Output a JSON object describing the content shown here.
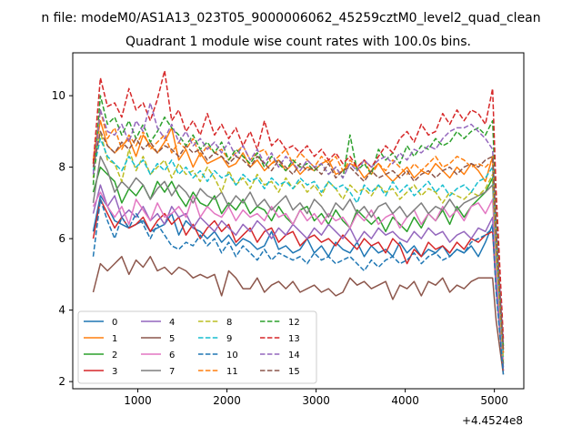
{
  "figure": {
    "suptitle": "n file: modeM0/AS1A13_023T05_9000006062_45259cztM0_level2_quad_clean"
  },
  "chart_data": {
    "type": "line",
    "title": "Quadrant 1 module wise count rates with 100.0s bins.",
    "xlabel": "",
    "ylabel": "",
    "x_offset_label": "+4.4524e8",
    "xlim": [
      270,
      5330
    ],
    "ylim": [
      1.8,
      11.2
    ],
    "xticks": [
      1000,
      2000,
      3000,
      4000,
      5000
    ],
    "yticks": [
      2,
      4,
      6,
      8,
      10
    ],
    "grid": false,
    "legend": {
      "placement": "lower-left",
      "columns": 4
    },
    "x": [
      500,
      580,
      660,
      740,
      820,
      900,
      980,
      1060,
      1140,
      1220,
      1300,
      1380,
      1460,
      1540,
      1620,
      1700,
      1780,
      1860,
      1940,
      2020,
      2100,
      2180,
      2260,
      2340,
      2420,
      2500,
      2580,
      2660,
      2740,
      2820,
      2900,
      2980,
      3060,
      3140,
      3220,
      3300,
      3380,
      3460,
      3540,
      3620,
      3700,
      3780,
      3860,
      3940,
      4020,
      4100,
      4180,
      4260,
      4340,
      4420,
      4500,
      4580,
      4660,
      4740,
      4820,
      4900,
      4980,
      5020,
      5100
    ],
    "series": [
      {
        "name": "0",
        "color": "#1f77b4",
        "style": "solid",
        "values": [
          6.2,
          7.2,
          6.9,
          6.5,
          6.4,
          6.3,
          6.4,
          6.5,
          6.2,
          6.3,
          6.4,
          6.7,
          6.1,
          6.5,
          6.3,
          6.2,
          6.0,
          6.2,
          5.9,
          6.1,
          5.8,
          6.0,
          5.9,
          5.7,
          5.8,
          6.2,
          5.7,
          5.8,
          5.6,
          5.7,
          6.0,
          5.6,
          5.8,
          5.5,
          5.9,
          5.7,
          5.6,
          5.9,
          5.5,
          5.8,
          5.6,
          5.7,
          5.5,
          5.9,
          5.6,
          5.8,
          5.5,
          5.7,
          5.6,
          5.8,
          5.5,
          5.7,
          5.6,
          5.8,
          5.5,
          5.9,
          6.4,
          4.8,
          2.4
        ]
      },
      {
        "name": "1",
        "color": "#ff7f0e",
        "style": "solid",
        "values": [
          8.1,
          9.3,
          8.6,
          8.4,
          8.6,
          8.8,
          8.3,
          8.9,
          8.6,
          8.4,
          8.7,
          9.1,
          8.2,
          8.5,
          8.0,
          8.4,
          8.1,
          8.2,
          8.3,
          8.0,
          8.1,
          8.4,
          8.0,
          8.2,
          7.9,
          8.1,
          8.2,
          7.9,
          8.1,
          7.8,
          8.0,
          7.9,
          8.1,
          8.2,
          7.8,
          7.9,
          8.1,
          8.0,
          7.7,
          7.9,
          8.1,
          7.8,
          7.6,
          7.8,
          8.0,
          7.7,
          7.9,
          7.8,
          8.1,
          7.9,
          7.7,
          8.0,
          7.8,
          8.1,
          7.9,
          7.6,
          8.3,
          6.0,
          2.9
        ]
      },
      {
        "name": "2",
        "color": "#2ca02c",
        "style": "solid",
        "values": [
          7.3,
          8.0,
          7.8,
          7.6,
          7.0,
          7.4,
          7.2,
          7.5,
          7.1,
          7.6,
          7.3,
          7.6,
          7.2,
          6.9,
          7.3,
          7.0,
          6.9,
          7.2,
          6.7,
          7.0,
          6.8,
          7.1,
          6.7,
          6.9,
          6.8,
          6.5,
          6.9,
          6.6,
          6.4,
          6.8,
          6.9,
          6.5,
          6.7,
          6.4,
          6.8,
          6.5,
          6.3,
          6.8,
          6.6,
          6.4,
          6.6,
          6.2,
          6.6,
          6.4,
          6.2,
          6.6,
          6.3,
          6.7,
          6.5,
          6.8,
          6.4,
          6.9,
          6.6,
          6.9,
          7.1,
          7.3,
          7.7,
          5.5,
          2.5
        ]
      },
      {
        "name": "3",
        "color": "#d62728",
        "style": "solid",
        "values": [
          6.0,
          7.1,
          6.7,
          6.3,
          6.6,
          6.3,
          6.4,
          6.6,
          6.2,
          6.5,
          6.7,
          6.4,
          6.6,
          6.1,
          6.4,
          6.0,
          6.3,
          6.5,
          6.2,
          6.4,
          5.9,
          6.1,
          6.3,
          5.9,
          6.2,
          6.3,
          5.9,
          6.1,
          6.2,
          5.8,
          6.0,
          6.1,
          5.9,
          6.0,
          5.8,
          6.1,
          5.9,
          5.7,
          6.0,
          5.8,
          5.9,
          5.6,
          6.0,
          5.8,
          5.3,
          5.7,
          5.5,
          5.9,
          5.7,
          5.8,
          5.6,
          5.9,
          5.7,
          6.0,
          5.9,
          6.1,
          6.2,
          4.6,
          2.3
        ]
      },
      {
        "name": "4",
        "color": "#9467bd",
        "style": "solid",
        "values": [
          6.7,
          7.5,
          6.9,
          7.2,
          6.6,
          6.8,
          6.6,
          6.9,
          6.5,
          6.7,
          6.4,
          6.9,
          6.6,
          6.7,
          6.3,
          6.6,
          6.4,
          6.2,
          6.5,
          6.3,
          6.1,
          6.4,
          6.2,
          6.5,
          6.3,
          6.0,
          6.3,
          6.1,
          6.4,
          6.2,
          6.0,
          6.3,
          6.1,
          6.4,
          6.2,
          6.0,
          6.3,
          5.9,
          6.2,
          6.0,
          6.3,
          6.1,
          6.2,
          6.0,
          5.9,
          6.2,
          6.0,
          6.3,
          6.1,
          6.2,
          5.9,
          6.1,
          6.2,
          6.0,
          6.3,
          6.2,
          6.6,
          4.7,
          2.3
        ]
      },
      {
        "name": "5",
        "color": "#8c564b",
        "style": "solid",
        "values": [
          4.5,
          5.3,
          5.1,
          5.3,
          5.5,
          5.0,
          5.4,
          5.2,
          5.5,
          5.1,
          5.2,
          5.0,
          5.2,
          5.1,
          4.9,
          5.0,
          4.9,
          5.0,
          4.4,
          5.1,
          4.9,
          4.6,
          4.6,
          4.9,
          4.5,
          4.7,
          4.8,
          4.6,
          4.8,
          4.5,
          4.6,
          4.7,
          4.5,
          4.6,
          4.4,
          4.5,
          4.9,
          4.7,
          4.8,
          4.6,
          4.7,
          4.8,
          4.3,
          4.7,
          4.6,
          4.8,
          4.4,
          4.8,
          4.7,
          4.9,
          4.5,
          4.7,
          4.6,
          4.8,
          4.9,
          4.9,
          4.9,
          3.7,
          2.2
        ]
      },
      {
        "name": "6",
        "color": "#e377c2",
        "style": "solid",
        "values": [
          6.9,
          7.3,
          6.9,
          6.6,
          6.9,
          6.4,
          7.1,
          6.8,
          6.5,
          7.0,
          6.6,
          6.7,
          6.9,
          6.6,
          7.2,
          6.6,
          6.9,
          6.7,
          6.6,
          6.9,
          6.5,
          6.8,
          6.6,
          6.7,
          6.5,
          6.9,
          6.6,
          6.7,
          6.4,
          6.8,
          6.5,
          6.7,
          6.4,
          6.7,
          6.5,
          6.6,
          6.3,
          6.7,
          6.5,
          6.8,
          6.4,
          6.6,
          6.7,
          6.3,
          6.6,
          6.8,
          6.4,
          6.7,
          6.5,
          6.9,
          6.6,
          6.8,
          6.5,
          6.9,
          7.0,
          6.7,
          7.1,
          5.2,
          2.6
        ]
      },
      {
        "name": "7",
        "color": "#7f7f7f",
        "style": "solid",
        "values": [
          7.0,
          8.3,
          7.9,
          7.3,
          7.6,
          7.4,
          7.7,
          7.5,
          7.1,
          7.4,
          7.6,
          7.2,
          7.5,
          7.3,
          7.0,
          7.4,
          7.2,
          7.1,
          7.3,
          6.9,
          7.2,
          7.0,
          7.3,
          6.9,
          7.1,
          6.8,
          7.0,
          7.2,
          6.8,
          7.0,
          6.7,
          7.1,
          6.9,
          6.6,
          7.0,
          6.8,
          7.1,
          6.7,
          6.9,
          6.6,
          6.9,
          7.0,
          6.7,
          6.9,
          6.6,
          6.8,
          7.0,
          6.7,
          6.9,
          6.8,
          7.1,
          6.8,
          7.0,
          7.1,
          7.2,
          7.3,
          7.5,
          5.6,
          2.8
        ]
      },
      {
        "name": "8",
        "color": "#bcbd22",
        "style": "dashed",
        "values": [
          7.7,
          9.0,
          8.2,
          8.1,
          7.6,
          8.5,
          7.9,
          8.3,
          7.8,
          8.0,
          8.2,
          7.7,
          8.1,
          7.8,
          7.9,
          7.6,
          8.0,
          7.7,
          7.3,
          7.9,
          7.5,
          7.7,
          7.4,
          7.8,
          7.5,
          7.6,
          7.3,
          7.7,
          7.4,
          7.6,
          7.3,
          7.5,
          7.2,
          7.6,
          7.4,
          7.1,
          7.5,
          7.3,
          7.4,
          7.2,
          7.5,
          7.3,
          7.4,
          7.1,
          7.3,
          7.5,
          7.2,
          7.4,
          7.3,
          7.0,
          7.3,
          7.2,
          7.1,
          7.3,
          7.2,
          7.4,
          7.8,
          5.5,
          2.6
        ]
      },
      {
        "name": "9",
        "color": "#17becf",
        "style": "dashed",
        "values": [
          7.9,
          8.8,
          8.3,
          8.1,
          7.9,
          8.3,
          8.0,
          8.2,
          7.8,
          8.1,
          7.9,
          8.2,
          7.8,
          8.0,
          7.7,
          7.9,
          7.6,
          7.9,
          7.7,
          7.8,
          7.5,
          7.8,
          7.6,
          7.7,
          7.4,
          7.7,
          7.5,
          7.6,
          7.4,
          7.7,
          7.5,
          7.6,
          7.3,
          7.6,
          7.4,
          7.5,
          7.3,
          7.0,
          7.5,
          7.3,
          7.5,
          7.2,
          7.6,
          7.3,
          7.5,
          7.2,
          7.4,
          7.6,
          7.3,
          7.5,
          7.2,
          7.4,
          7.5,
          7.3,
          7.6,
          7.7,
          8.0,
          5.8,
          2.7
        ]
      },
      {
        "name": "10",
        "color": "#1f77b4",
        "style": "dashed",
        "values": [
          5.5,
          7.1,
          6.5,
          6.0,
          6.6,
          6.3,
          6.7,
          6.4,
          6.0,
          6.4,
          6.1,
          5.8,
          5.7,
          5.9,
          5.8,
          6.1,
          5.8,
          6.0,
          5.6,
          5.9,
          5.5,
          5.8,
          5.6,
          5.4,
          5.7,
          5.4,
          5.6,
          5.5,
          5.4,
          5.5,
          5.3,
          5.6,
          5.4,
          5.5,
          5.3,
          5.4,
          5.5,
          5.3,
          5.1,
          5.4,
          5.2,
          5.4,
          5.5,
          5.3,
          5.4,
          5.6,
          5.3,
          5.5,
          5.6,
          5.4,
          5.5,
          5.7,
          5.6,
          5.9,
          6.0,
          6.1,
          6.3,
          4.5,
          2.2
        ]
      },
      {
        "name": "11",
        "color": "#ff7f0e",
        "style": "dashed",
        "values": [
          8.2,
          9.6,
          8.8,
          9.1,
          8.5,
          8.9,
          8.6,
          9.0,
          8.5,
          8.7,
          8.9,
          8.4,
          8.7,
          8.5,
          8.8,
          8.3,
          8.6,
          8.4,
          8.5,
          8.2,
          8.4,
          8.6,
          8.2,
          8.4,
          8.5,
          8.1,
          8.3,
          8.5,
          8.1,
          8.4,
          8.2,
          8.0,
          8.3,
          8.1,
          8.3,
          7.9,
          8.2,
          8.0,
          8.2,
          7.8,
          8.1,
          7.9,
          8.2,
          8.0,
          7.8,
          8.1,
          7.9,
          8.1,
          8.3,
          8.0,
          8.1,
          8.3,
          8.2,
          8.0,
          8.1,
          8.0,
          8.2,
          6.0,
          2.8
        ]
      },
      {
        "name": "12",
        "color": "#2ca02c",
        "style": "dashed",
        "values": [
          7.5,
          10.0,
          9.2,
          9.4,
          8.9,
          9.3,
          8.8,
          9.2,
          8.7,
          9.0,
          9.4,
          9.1,
          8.9,
          8.6,
          8.9,
          8.5,
          8.7,
          8.4,
          8.7,
          8.2,
          8.5,
          8.3,
          8.1,
          8.4,
          8.0,
          8.3,
          8.1,
          7.9,
          8.2,
          8.0,
          8.1,
          7.9,
          8.1,
          7.8,
          8.0,
          7.7,
          8.9,
          7.9,
          8.1,
          7.8,
          8.5,
          8.2,
          8.4,
          8.1,
          8.6,
          8.3,
          8.6,
          8.5,
          8.8,
          8.6,
          8.7,
          9.0,
          8.8,
          9.0,
          9.1,
          8.9,
          9.3,
          6.8,
          3.0
        ]
      },
      {
        "name": "13",
        "color": "#d62728",
        "style": "dashed",
        "values": [
          8.1,
          10.5,
          9.7,
          9.8,
          9.4,
          10.2,
          9.6,
          9.8,
          9.3,
          9.9,
          10.7,
          9.3,
          9.6,
          9.0,
          9.3,
          8.9,
          9.5,
          8.9,
          9.2,
          8.8,
          9.1,
          8.6,
          9.0,
          8.5,
          9.3,
          8.6,
          8.8,
          8.5,
          8.6,
          8.4,
          8.6,
          8.3,
          8.5,
          8.2,
          8.4,
          8.1,
          8.3,
          8.0,
          8.2,
          8.0,
          8.3,
          8.6,
          8.4,
          8.8,
          9.0,
          8.7,
          9.2,
          8.9,
          9.0,
          9.5,
          9.2,
          9.6,
          9.3,
          9.6,
          9.5,
          9.2,
          10.2,
          7.3,
          3.2
        ]
      },
      {
        "name": "14",
        "color": "#9467bd",
        "style": "dashed",
        "values": [
          7.8,
          9.6,
          9.0,
          8.9,
          9.2,
          8.7,
          9.3,
          9.0,
          9.8,
          9.1,
          8.8,
          9.2,
          8.7,
          9.0,
          8.6,
          8.8,
          8.5,
          8.7,
          8.4,
          8.7,
          8.3,
          8.6,
          8.2,
          8.5,
          8.1,
          8.4,
          8.0,
          8.3,
          8.1,
          7.9,
          8.2,
          8.0,
          8.1,
          7.8,
          8.0,
          7.7,
          8.1,
          7.9,
          8.2,
          8.0,
          8.2,
          8.3,
          8.1,
          8.4,
          8.2,
          8.5,
          8.4,
          8.6,
          8.5,
          8.8,
          9.0,
          9.1,
          9.1,
          9.2,
          9.0,
          8.8,
          8.5,
          6.3,
          3.0
        ]
      },
      {
        "name": "15",
        "color": "#8c564b",
        "style": "dashed",
        "values": [
          8.0,
          9.0,
          8.6,
          8.4,
          8.7,
          8.5,
          8.8,
          8.5,
          8.7,
          8.4,
          8.6,
          8.5,
          8.3,
          8.6,
          8.4,
          8.5,
          8.2,
          8.4,
          8.3,
          8.1,
          8.3,
          8.2,
          8.0,
          8.3,
          8.1,
          7.9,
          8.2,
          8.0,
          7.8,
          8.1,
          7.9,
          8.0,
          7.8,
          8.1,
          7.7,
          7.9,
          8.0,
          7.8,
          7.6,
          7.9,
          7.7,
          7.8,
          7.9,
          7.7,
          7.9,
          7.6,
          7.8,
          7.9,
          7.7,
          7.9,
          8.0,
          7.8,
          8.0,
          8.1,
          8.0,
          8.2,
          8.3,
          6.1,
          2.9
        ]
      }
    ]
  }
}
